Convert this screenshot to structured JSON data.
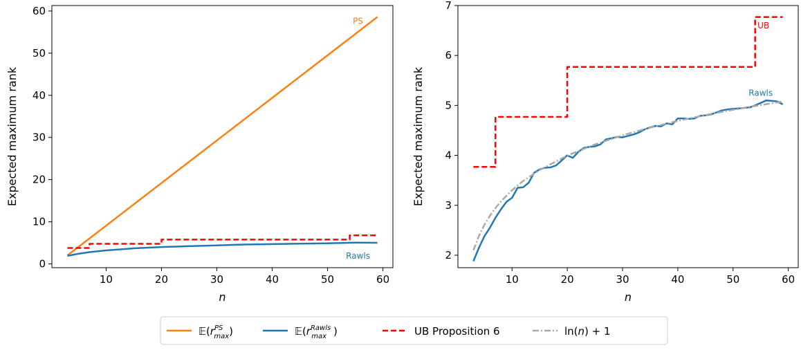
{
  "chart_data": [
    {
      "type": "line",
      "xlabel": "n",
      "ylabel": "Expected maximum rank",
      "xlim": [
        0.2,
        61.8
      ],
      "ylim": [
        -0.9,
        61.3
      ],
      "xticks": [
        10,
        20,
        30,
        40,
        50,
        60
      ],
      "yticks": [
        0,
        10,
        20,
        30,
        40,
        50,
        60
      ],
      "annotations": [
        {
          "text": "PS",
          "x": 55.5,
          "y": 57.6,
          "color": "#ff7f0e"
        },
        {
          "text": "Rawls",
          "x": 55.5,
          "y": 1.9,
          "color": "#1f77b4"
        }
      ],
      "series": [
        {
          "key": "ps",
          "color": "#ff7f0e",
          "style": "solid",
          "x": [
            3,
            59
          ],
          "y": [
            2.0,
            58.6
          ]
        },
        {
          "key": "rawls",
          "color": "#1f77b4",
          "style": "solid",
          "x": [
            3,
            5,
            7,
            10,
            13,
            15,
            20,
            25,
            30,
            35,
            40,
            45,
            50,
            55,
            59
          ],
          "y": [
            1.9,
            2.4,
            2.8,
            3.2,
            3.5,
            3.7,
            4.0,
            4.2,
            4.4,
            4.6,
            4.7,
            4.8,
            4.9,
            5.05,
            5.0
          ]
        },
        {
          "key": "ub",
          "color": "#ff0000",
          "style": "dashed",
          "x": [
            3,
            7,
            7,
            20,
            20,
            54,
            54,
            59
          ],
          "y": [
            3.77,
            3.77,
            4.77,
            4.77,
            5.77,
            5.77,
            6.77,
            6.77
          ]
        }
      ]
    },
    {
      "type": "line",
      "xlabel": "n",
      "ylabel": "Expected maximum rank",
      "xlim": [
        0.2,
        61.8
      ],
      "ylim": [
        1.75,
        7.0
      ],
      "xticks": [
        10,
        20,
        30,
        40,
        50,
        60
      ],
      "yticks": [
        2,
        3,
        4,
        5,
        6,
        7
      ],
      "annotations": [
        {
          "text": "UB",
          "x": 55.5,
          "y": 6.6,
          "color": "#ff0000"
        },
        {
          "text": "Rawls",
          "x": 55.0,
          "y": 5.25,
          "color": "#1f77b4"
        }
      ],
      "series": [
        {
          "key": "rawls",
          "color": "#1f77b4",
          "style": "solid",
          "x": [
            3,
            4,
            5,
            6,
            7,
            8,
            9,
            10,
            11,
            12,
            13,
            14,
            15,
            16,
            17,
            18,
            19,
            20,
            21,
            22,
            23,
            24,
            25,
            26,
            27,
            28,
            29,
            30,
            31,
            32,
            33,
            34,
            35,
            36,
            37,
            38,
            39,
            40,
            41,
            42,
            43,
            44,
            45,
            46,
            47,
            48,
            49,
            50,
            51,
            52,
            53,
            54,
            55,
            56,
            57,
            58,
            59
          ],
          "y": [
            1.88,
            2.15,
            2.38,
            2.55,
            2.75,
            2.92,
            3.07,
            3.15,
            3.35,
            3.36,
            3.45,
            3.65,
            3.72,
            3.75,
            3.76,
            3.8,
            3.9,
            4.0,
            3.95,
            4.07,
            4.15,
            4.17,
            4.18,
            4.22,
            4.32,
            4.34,
            4.37,
            4.36,
            4.39,
            4.42,
            4.46,
            4.52,
            4.56,
            4.59,
            4.58,
            4.64,
            4.62,
            4.74,
            4.74,
            4.73,
            4.74,
            4.79,
            4.8,
            4.82,
            4.86,
            4.9,
            4.92,
            4.93,
            4.94,
            4.95,
            4.96,
            5.0,
            5.05,
            5.1,
            5.09,
            5.08,
            5.02
          ]
        },
        {
          "key": "ln",
          "color": "#a9a9a9",
          "style": "dashdot",
          "x": [
            3,
            4,
            5,
            6,
            7,
            8,
            10,
            12,
            15,
            20,
            25,
            30,
            35,
            40,
            45,
            50,
            55,
            59
          ],
          "y": [
            2.099,
            2.386,
            2.609,
            2.792,
            2.946,
            3.079,
            3.303,
            3.485,
            3.708,
            3.996,
            4.219,
            4.401,
            4.555,
            4.689,
            4.807,
            4.912,
            5.007,
            5.078
          ]
        },
        {
          "key": "ub",
          "color": "#ff0000",
          "style": "dashed",
          "x": [
            3,
            7,
            7,
            20,
            20,
            54,
            54,
            59
          ],
          "y": [
            3.77,
            3.77,
            4.77,
            4.77,
            5.77,
            5.77,
            6.77,
            6.77
          ]
        }
      ]
    }
  ],
  "legend": {
    "placement": "bottom-center",
    "entries": [
      {
        "key": "ps",
        "label": "𝔼(r_max^PS)",
        "color": "#ff7f0e",
        "style": "solid"
      },
      {
        "key": "rawls",
        "label": "𝔼(r_max^Rawls)",
        "color": "#1f77b4",
        "style": "solid"
      },
      {
        "key": "ub",
        "label": "UB Proposition 6",
        "color": "#ff0000",
        "style": "dashed"
      },
      {
        "key": "ln",
        "label": "ln(n) + 1",
        "color": "#a9a9a9",
        "style": "dashdot"
      }
    ]
  }
}
